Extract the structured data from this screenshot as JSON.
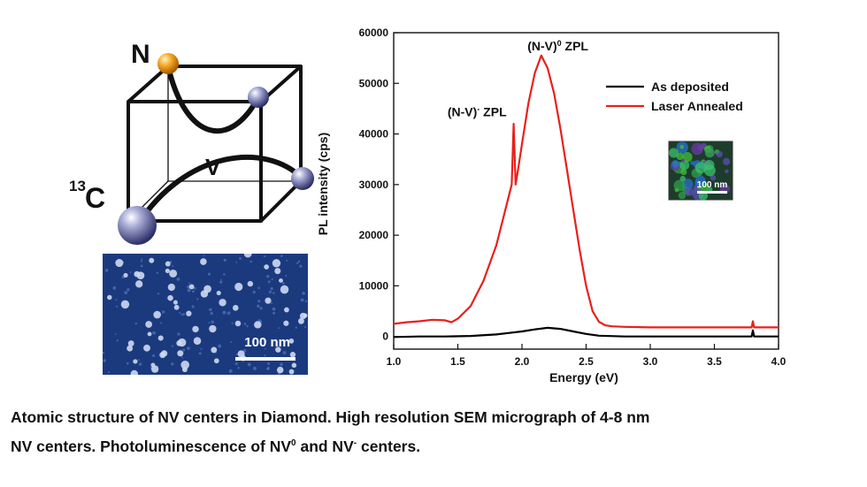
{
  "diagram": {
    "label_n": "N",
    "label_v": "V",
    "label_c_mass": "13",
    "label_c": "C",
    "colors": {
      "nitrogen": "#f5a623",
      "atom": "#5a5fa0",
      "bond": "#111111",
      "cube": "#111111"
    }
  },
  "sem": {
    "scale_label": "100 nm",
    "background_color": "#1b3a7e"
  },
  "inset": {
    "scale_label": "100 nm"
  },
  "chart_data": {
    "type": "line",
    "xlabel": "Energy (eV)",
    "ylabel": "PL intensity (cps)",
    "xlim": [
      1.0,
      4.0
    ],
    "ylim": [
      -2500,
      60000
    ],
    "x_ticks": [
      1.0,
      1.5,
      2.0,
      2.5,
      3.0,
      3.5,
      4.0
    ],
    "x_tick_labels": [
      "1.0",
      "1.5",
      "2.0",
      "2.5",
      "3.0",
      "3.5",
      "4.0"
    ],
    "y_ticks": [
      0,
      10000,
      20000,
      30000,
      40000,
      50000,
      60000
    ],
    "y_tick_labels": [
      "0",
      "10000",
      "20000",
      "30000",
      "40000",
      "50000",
      "60000"
    ],
    "legend_position": "top-right",
    "series": [
      {
        "name": "As deposited",
        "color": "#000000",
        "x": [
          1.0,
          1.2,
          1.4,
          1.6,
          1.8,
          1.9,
          2.0,
          2.1,
          2.2,
          2.3,
          2.4,
          2.5,
          2.6,
          2.8,
          3.0,
          3.5,
          3.79,
          3.8,
          3.81,
          4.0
        ],
        "y": [
          -100,
          0,
          0,
          100,
          400,
          700,
          1000,
          1400,
          1700,
          1500,
          1000,
          500,
          150,
          0,
          0,
          0,
          0,
          1200,
          0,
          0
        ]
      },
      {
        "name": "Laser Annealed",
        "color": "#e8201a",
        "x": [
          1.0,
          1.1,
          1.2,
          1.3,
          1.4,
          1.45,
          1.5,
          1.6,
          1.7,
          1.8,
          1.85,
          1.9,
          1.92,
          1.935,
          1.95,
          1.97,
          2.0,
          2.05,
          2.1,
          2.15,
          2.2,
          2.25,
          2.3,
          2.35,
          2.4,
          2.45,
          2.5,
          2.55,
          2.6,
          2.65,
          2.7,
          2.8,
          3.0,
          3.5,
          3.79,
          3.8,
          3.81,
          4.0
        ],
        "y": [
          2500,
          2800,
          3000,
          3300,
          3200,
          2800,
          3500,
          6000,
          11000,
          18000,
          23000,
          28000,
          30000,
          42000,
          30000,
          33000,
          38000,
          46000,
          52000,
          55500,
          53000,
          48000,
          41000,
          33000,
          25000,
          17000,
          10000,
          5000,
          2900,
          2200,
          2000,
          1900,
          1800,
          1800,
          1800,
          3000,
          1800,
          1800
        ]
      }
    ],
    "annotations": [
      {
        "text": "(N-V)",
        "sup": "0",
        "suffix": " ZPL",
        "x": 2.28,
        "y": 56500
      },
      {
        "text": "(N-V)",
        "sup": "-",
        "suffix": " ZPL",
        "x": 1.65,
        "y": 43500
      }
    ]
  },
  "caption": {
    "line1": "Atomic structure of NV centers in Diamond. High resolution SEM micrograph of 4-8 nm",
    "line2_a": "NV centers. Photoluminescence of NV",
    "line2_sup1": "0",
    "line2_b": " and NV",
    "line2_sup2": "-",
    "line2_c": " centers."
  }
}
